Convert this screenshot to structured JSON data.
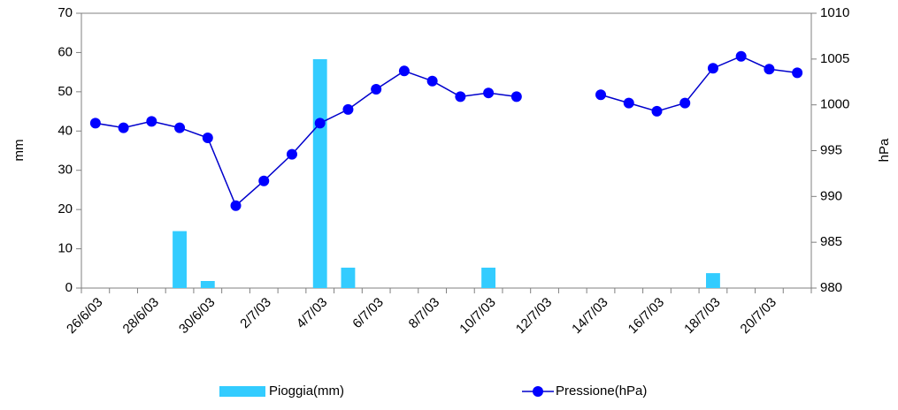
{
  "chart_data": {
    "type": "bar_line",
    "categories": [
      "26/6/03",
      null,
      "28/6/03",
      null,
      "30/6/03",
      null,
      "2/7/03",
      null,
      "4/7/03",
      null,
      "6/7/03",
      null,
      "8/7/03",
      null,
      "10/7/03",
      null,
      "12/7/03",
      null,
      "14/7/03",
      null,
      "16/7/03",
      null,
      "18/7/03",
      null,
      "20/7/03",
      null
    ],
    "series": [
      {
        "name": "Pioggia(mm)",
        "type": "bar",
        "color": "#33ccff",
        "axis": "y",
        "values": [
          0,
          0,
          0,
          14.5,
          1.8,
          0,
          0,
          0,
          58.3,
          5.2,
          0,
          0,
          0,
          0,
          5.2,
          0,
          0,
          0,
          0,
          0,
          0,
          0,
          3.8,
          0,
          0,
          0
        ]
      },
      {
        "name": "Pressione(hPa)",
        "type": "line",
        "color": "#0000cc",
        "axis": "y2",
        "values": [
          998.0,
          997.5,
          998.2,
          997.5,
          996.4,
          989.0,
          991.7,
          994.6,
          998.0,
          999.5,
          1001.7,
          1003.7,
          1002.6,
          1000.9,
          1001.3,
          1000.9,
          null,
          null,
          1001.1,
          1000.2,
          999.3,
          1000.2,
          1004.0,
          1005.3,
          1003.9,
          1003.5
        ]
      }
    ],
    "ylabel": "mm",
    "y2label": "hPa",
    "ylim": [
      0,
      70
    ],
    "yticks": [
      0,
      10,
      20,
      30,
      40,
      50,
      60,
      70
    ],
    "y2lim": [
      980,
      1010
    ],
    "y2ticks": [
      980,
      985,
      990,
      995,
      1000,
      1005,
      1010
    ],
    "legend": "bottom"
  }
}
